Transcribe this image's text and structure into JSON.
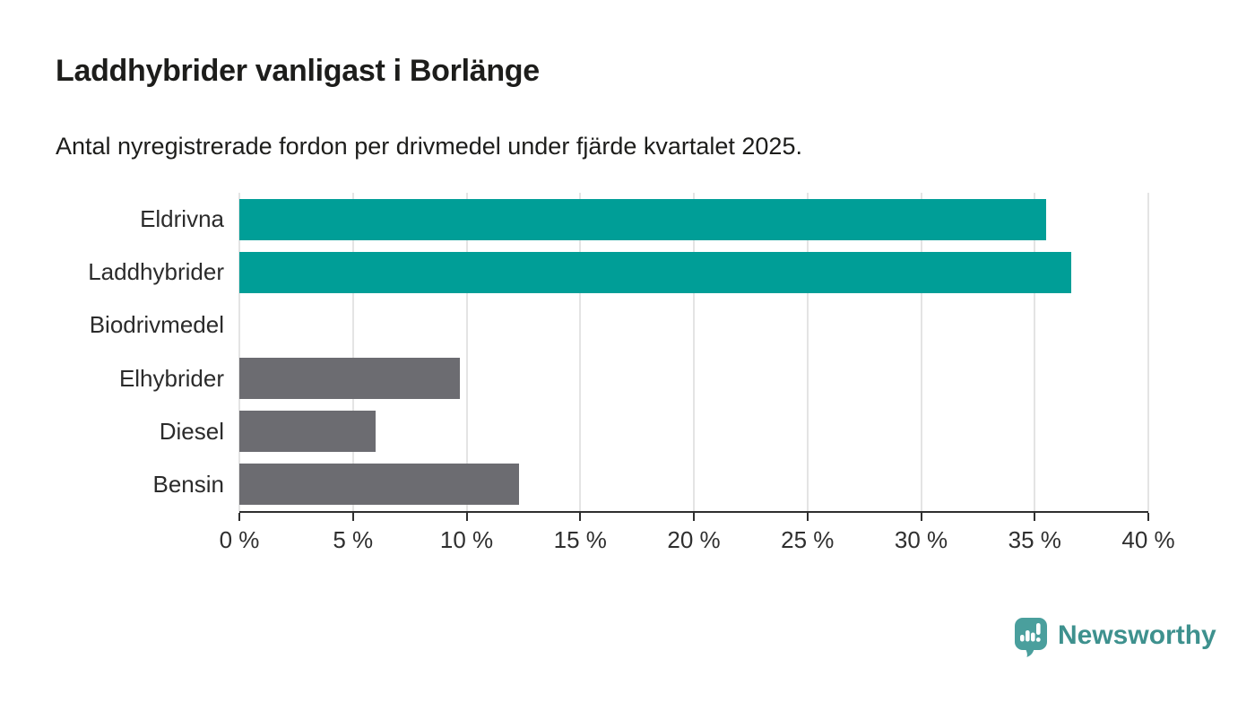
{
  "chart_data": {
    "type": "bar",
    "orientation": "horizontal",
    "title": "Laddhybrider vanligast i Borlänge",
    "subtitle": "Antal nyregistrerade fordon per drivmedel under fjärde kvartalet 2025.",
    "categories": [
      "Eldrivna",
      "Laddhybrider",
      "Biodrivmedel",
      "Elhybrider",
      "Diesel",
      "Bensin"
    ],
    "values": [
      35.5,
      36.6,
      0,
      9.7,
      6,
      12.3
    ],
    "unit": "%",
    "xlim": [
      0,
      40
    ],
    "x_ticks": [
      "0 %",
      "5 %",
      "10 %",
      "15 %",
      "20 %",
      "25 %",
      "30 %",
      "35 %",
      "40 %"
    ],
    "bar_colors": [
      "#009e97",
      "#009e97",
      "#6c6c71",
      "#6c6c71",
      "#6c6c71",
      "#6c6c71"
    ],
    "grid": "vertical",
    "legend": "none"
  },
  "branding": {
    "logo_text": "Newsworthy",
    "logo_icon": "speech-bubble-bar-chart-icon",
    "logo_text_color": "#3e918e",
    "logo_icon_color": "#4a9f9d"
  },
  "colors": {
    "bar_teal": "#009e97",
    "bar_gray": "#6c6c71",
    "text": "#1d1d1b",
    "axis": "#2f2f2f",
    "gridline": "#e4e4e4",
    "background": "#ffffff"
  }
}
